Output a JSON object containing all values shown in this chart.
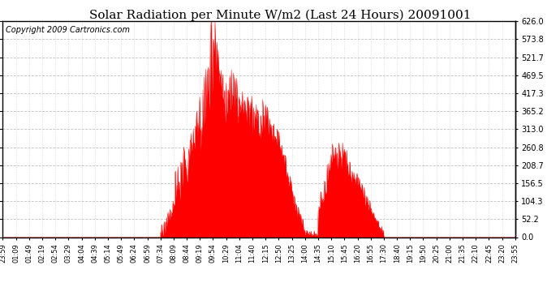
{
  "title": "Solar Radiation per Minute W/m2 (Last 24 Hours) 20091001",
  "copyright": "Copyright 2009 Cartronics.com",
  "background_color": "#ffffff",
  "plot_bg_color": "#ffffff",
  "fill_color": "#ff0000",
  "line_color": "#ff0000",
  "dashed_line_color": "#ff0000",
  "grid_color": "#c0c0c0",
  "ymin": 0.0,
  "ymax": 626.0,
  "yticks": [
    0.0,
    52.2,
    104.3,
    156.5,
    208.7,
    260.8,
    313.0,
    365.2,
    417.3,
    469.5,
    521.7,
    573.8,
    626.0
  ],
  "x_labels": [
    "23:59",
    "01:09",
    "01:49",
    "02:19",
    "02:54",
    "03:29",
    "04:04",
    "04:39",
    "05:14",
    "05:49",
    "06:24",
    "06:59",
    "07:34",
    "08:09",
    "08:44",
    "09:19",
    "09:54",
    "10:29",
    "11:04",
    "11:40",
    "12:15",
    "12:50",
    "13:25",
    "14:00",
    "14:35",
    "15:10",
    "15:45",
    "16:20",
    "16:55",
    "17:30",
    "18:40",
    "19:15",
    "19:50",
    "20:25",
    "21:00",
    "21:35",
    "22:10",
    "22:45",
    "23:20",
    "23:55"
  ],
  "title_fontsize": 11,
  "copyright_fontsize": 7,
  "tick_fontsize": 7
}
